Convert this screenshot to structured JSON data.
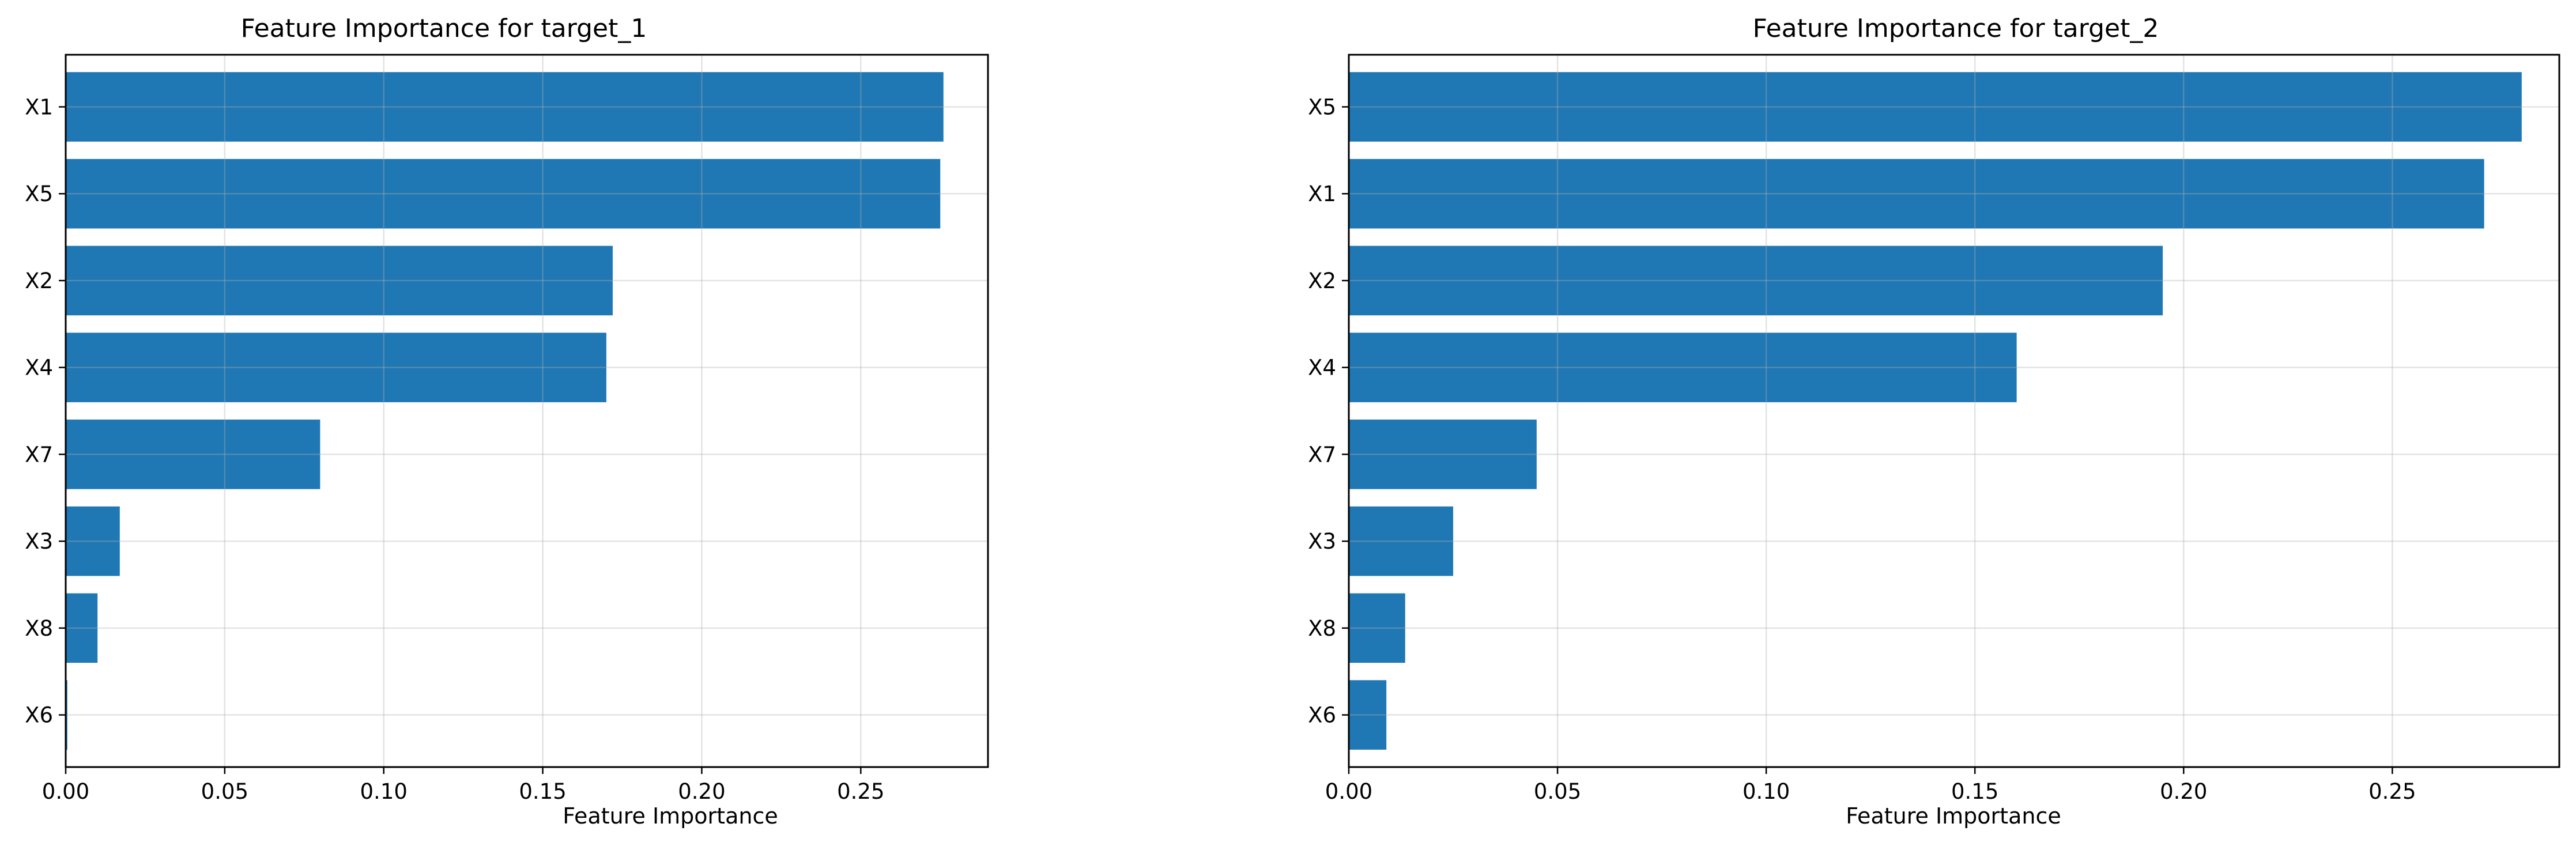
{
  "chart_data": [
    {
      "type": "bar",
      "orientation": "horizontal",
      "title": "Feature Importance for target_1",
      "xlabel": "Feature Importance",
      "ylabel": "",
      "categories": [
        "X1",
        "X5",
        "X2",
        "X4",
        "X7",
        "X3",
        "X8",
        "X6"
      ],
      "values": [
        0.276,
        0.275,
        0.172,
        0.17,
        0.08,
        0.017,
        0.01,
        0.0005
      ],
      "xlim": [
        0,
        0.29
      ],
      "xticks": [
        0.0,
        0.05,
        0.1,
        0.15,
        0.2,
        0.25
      ],
      "xtick_labels": [
        "0.00",
        "0.05",
        "0.10",
        "0.15",
        "0.20",
        "0.25"
      ],
      "grid": true,
      "color": "#1f77b4"
    },
    {
      "type": "bar",
      "orientation": "horizontal",
      "title": "Feature Importance for target_2",
      "xlabel": "Feature Importance",
      "ylabel": "",
      "categories": [
        "X5",
        "X1",
        "X2",
        "X4",
        "X7",
        "X3",
        "X8",
        "X6"
      ],
      "values": [
        0.281,
        0.272,
        0.195,
        0.16,
        0.045,
        0.025,
        0.0135,
        0.009
      ],
      "xlim": [
        0,
        0.29
      ],
      "xticks": [
        0.0,
        0.05,
        0.1,
        0.15,
        0.2,
        0.25
      ],
      "xtick_labels": [
        "0.00",
        "0.05",
        "0.10",
        "0.15",
        "0.20",
        "0.25"
      ],
      "grid": true,
      "color": "#1f77b4"
    }
  ]
}
